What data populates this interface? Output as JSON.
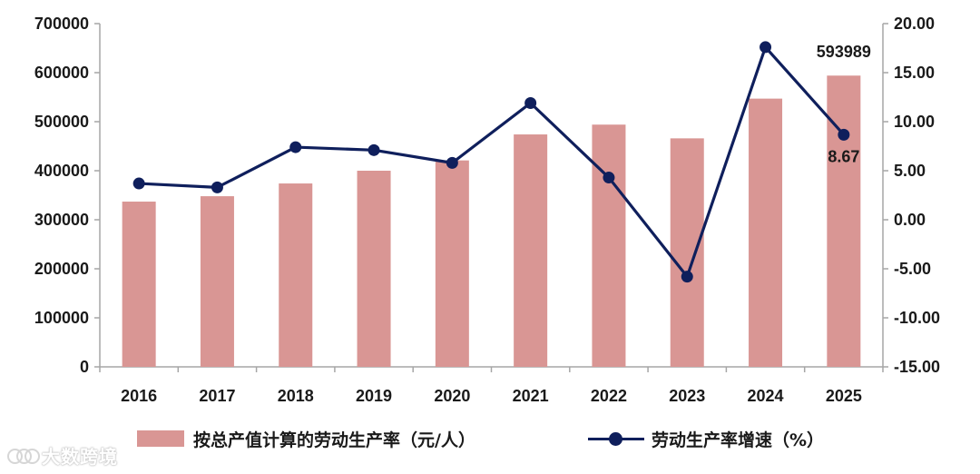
{
  "chart_data": {
    "type": "bar+line",
    "categories": [
      "2016",
      "2017",
      "2018",
      "2019",
      "2020",
      "2021",
      "2022",
      "2023",
      "2024",
      "2025"
    ],
    "series": [
      {
        "name": "按总产值计算的劳动生产率（元/人）",
        "type": "bar",
        "axis": "left",
        "color": "#d99694",
        "values": [
          337000,
          348000,
          374000,
          400000,
          421000,
          474000,
          494000,
          466000,
          547000,
          593989
        ]
      },
      {
        "name": "劳动生产率增速（%）",
        "type": "line",
        "axis": "right",
        "color": "#0f1f5c",
        "values": [
          3.7,
          3.3,
          7.4,
          7.1,
          5.8,
          11.9,
          4.3,
          -5.8,
          17.6,
          8.67
        ]
      }
    ],
    "left_axis": {
      "min": 0,
      "max": 700000,
      "step": 100000,
      "ticks": [
        "0",
        "100000",
        "200000",
        "300000",
        "400000",
        "500000",
        "600000",
        "700000"
      ]
    },
    "right_axis": {
      "min": -15,
      "max": 20,
      "step": 5,
      "ticks": [
        "-15.00",
        "-10.00",
        "-5.00",
        "0.00",
        "5.00",
        "10.00",
        "15.00",
        "20.00"
      ]
    },
    "data_labels": [
      {
        "series": 0,
        "index": 9,
        "text": "593989"
      },
      {
        "series": 1,
        "index": 9,
        "text": "8.67"
      }
    ],
    "legend_position": "bottom",
    "grid": false
  },
  "watermark": {
    "text": "大数跨境"
  }
}
